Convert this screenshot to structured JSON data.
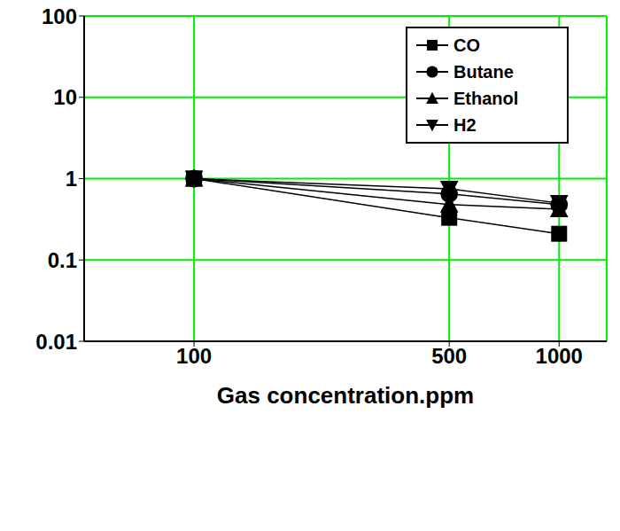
{
  "chart_data": {
    "type": "line",
    "x_label": "Gas concentration.ppm",
    "x": [
      100,
      500,
      1000
    ],
    "series": [
      {
        "name": "CO",
        "color": "#000000",
        "marker": "square",
        "values": [
          1,
          0.33,
          0.21
        ]
      },
      {
        "name": "Butane",
        "color": "#000000",
        "marker": "circle",
        "values": [
          1,
          0.65,
          0.48
        ]
      },
      {
        "name": "Ethanol",
        "color": "#000000",
        "marker": "triangle",
        "values": [
          1,
          0.48,
          0.42
        ]
      },
      {
        "name": "H2",
        "color": "#000000",
        "marker": "triangle-down",
        "values": [
          1,
          0.75,
          0.5
        ]
      }
    ],
    "xlim": [
      50,
      1350
    ],
    "xticks": [
      100,
      500,
      1000
    ],
    "ylim": [
      0.01,
      100
    ],
    "yticks": [
      0.01,
      0.1,
      1,
      10,
      100
    ],
    "log": true,
    "grid": true,
    "legend": "upper right"
  }
}
